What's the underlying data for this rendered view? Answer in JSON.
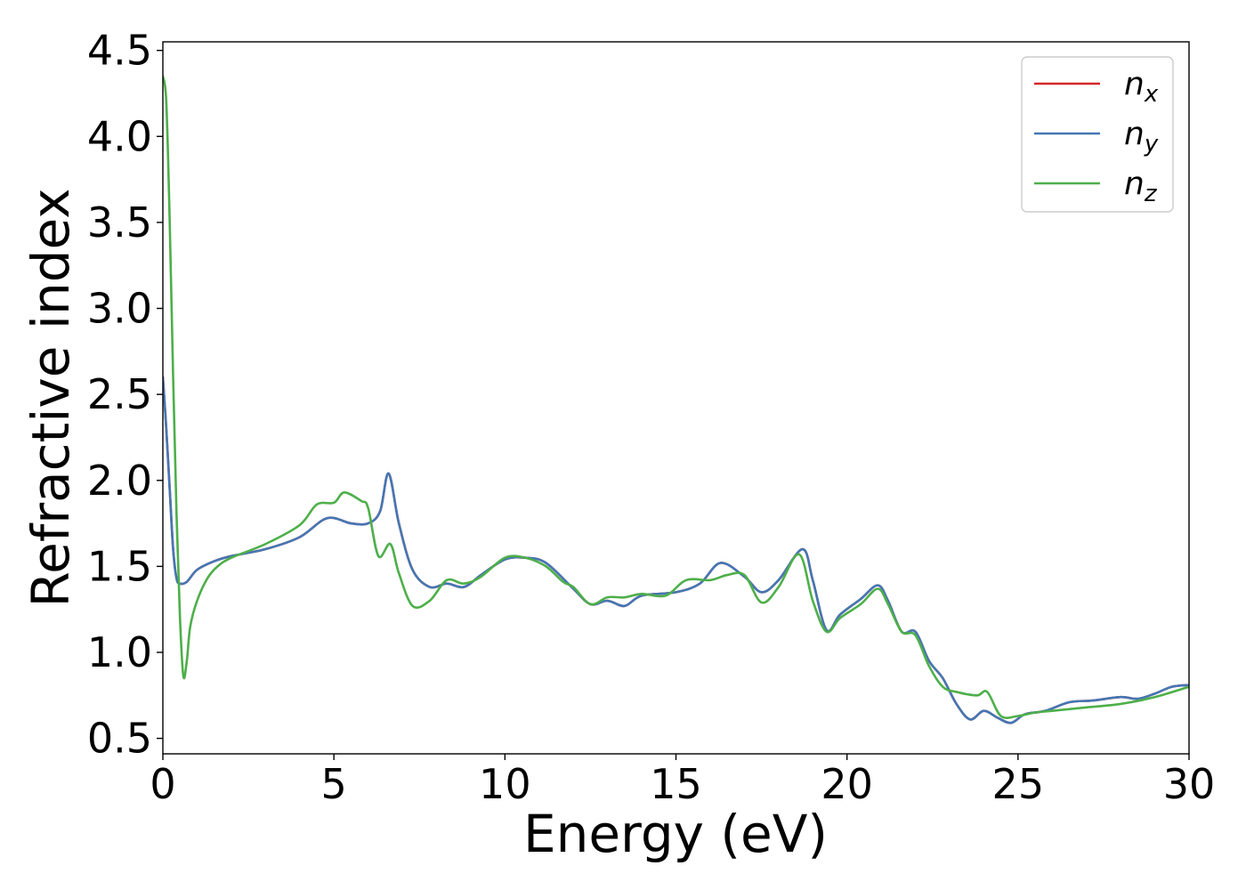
{
  "chart_data": {
    "type": "line",
    "title": "",
    "xlabel": "Energy (eV)",
    "ylabel": "Refractive index",
    "xlim": [
      0,
      30
    ],
    "ylim": [
      0.41,
      4.55
    ],
    "xticks": [
      0,
      5,
      10,
      15,
      20,
      25,
      30
    ],
    "xtick_labels": [
      "0",
      "5",
      "10",
      "15",
      "20",
      "25",
      "30"
    ],
    "yticks": [
      0.5,
      1.0,
      1.5,
      2.0,
      2.5,
      3.0,
      3.5,
      4.0,
      4.5
    ],
    "ytick_labels": [
      "0.5",
      "1.0",
      "1.5",
      "2.0",
      "2.5",
      "3.0",
      "3.5",
      "4.0",
      "4.5"
    ],
    "grid": false,
    "legend_position": "top-right",
    "series": [
      {
        "name": "n",
        "subscript": "x",
        "color": "#d62728",
        "x": [
          0,
          0.1,
          0.2,
          0.3,
          0.4,
          0.5,
          0.7,
          1,
          1.5,
          2,
          3,
          4,
          4.8,
          5.5,
          6,
          6.35,
          6.6,
          6.9,
          7.3,
          7.8,
          8.3,
          8.8,
          9.3,
          10,
          10.6,
          11.2,
          12,
          12.5,
          13,
          13.5,
          14,
          15,
          15.7,
          16.3,
          17,
          17.5,
          18,
          18.7,
          19,
          19.4,
          19.8,
          20.4,
          20.9,
          21.2,
          21.6,
          22,
          22.4,
          22.8,
          23.2,
          23.6,
          24,
          24.4,
          24.8,
          25.2,
          25.8,
          26.5,
          27.2,
          28,
          28.5,
          29,
          29.5,
          30
        ],
        "y": [
          2.6,
          2.3,
          1.95,
          1.6,
          1.43,
          1.4,
          1.41,
          1.48,
          1.53,
          1.56,
          1.6,
          1.67,
          1.78,
          1.75,
          1.75,
          1.82,
          2.04,
          1.75,
          1.48,
          1.38,
          1.4,
          1.38,
          1.45,
          1.54,
          1.55,
          1.52,
          1.37,
          1.28,
          1.3,
          1.27,
          1.33,
          1.35,
          1.4,
          1.52,
          1.44,
          1.35,
          1.42,
          1.6,
          1.42,
          1.13,
          1.22,
          1.31,
          1.39,
          1.3,
          1.12,
          1.12,
          0.95,
          0.85,
          0.7,
          0.61,
          0.66,
          0.62,
          0.59,
          0.64,
          0.66,
          0.71,
          0.72,
          0.74,
          0.73,
          0.76,
          0.8,
          0.81
        ]
      },
      {
        "name": "n",
        "subscript": "y",
        "color": "#4477b4",
        "x": [
          0,
          0.1,
          0.2,
          0.3,
          0.4,
          0.5,
          0.7,
          1,
          1.5,
          2,
          3,
          4,
          4.8,
          5.5,
          6,
          6.35,
          6.6,
          6.9,
          7.3,
          7.8,
          8.3,
          8.8,
          9.3,
          10,
          10.6,
          11.2,
          12,
          12.5,
          13,
          13.5,
          14,
          15,
          15.7,
          16.3,
          17,
          17.5,
          18,
          18.7,
          19,
          19.4,
          19.8,
          20.4,
          20.9,
          21.2,
          21.6,
          22,
          22.4,
          22.8,
          23.2,
          23.6,
          24,
          24.4,
          24.8,
          25.2,
          25.8,
          26.5,
          27.2,
          28,
          28.5,
          29,
          29.5,
          30
        ],
        "y": [
          2.6,
          2.3,
          1.95,
          1.6,
          1.43,
          1.4,
          1.41,
          1.48,
          1.53,
          1.56,
          1.6,
          1.67,
          1.78,
          1.75,
          1.75,
          1.82,
          2.04,
          1.75,
          1.48,
          1.38,
          1.4,
          1.38,
          1.45,
          1.54,
          1.55,
          1.52,
          1.37,
          1.28,
          1.3,
          1.27,
          1.33,
          1.35,
          1.4,
          1.52,
          1.44,
          1.35,
          1.42,
          1.6,
          1.42,
          1.13,
          1.22,
          1.31,
          1.39,
          1.3,
          1.12,
          1.12,
          0.95,
          0.85,
          0.7,
          0.61,
          0.66,
          0.62,
          0.59,
          0.64,
          0.66,
          0.71,
          0.72,
          0.74,
          0.73,
          0.76,
          0.8,
          0.81
        ]
      },
      {
        "name": "n",
        "subscript": "z",
        "color": "#4daf4a",
        "x": [
          0,
          0.1,
          0.2,
          0.3,
          0.4,
          0.5,
          0.6,
          0.7,
          0.8,
          1,
          1.3,
          1.6,
          2,
          3,
          4,
          4.5,
          5,
          5.3,
          5.8,
          6,
          6.3,
          6.65,
          6.9,
          7.3,
          7.8,
          8.3,
          8.8,
          9.3,
          10,
          10.6,
          11.2,
          11.7,
          12,
          12.5,
          13,
          13.5,
          14,
          14.7,
          15.3,
          16,
          16.5,
          17,
          17.5,
          18,
          18.6,
          19,
          19.4,
          19.8,
          20.4,
          20.9,
          21.2,
          21.6,
          22,
          22.4,
          22.8,
          23.2,
          23.8,
          24.1,
          24.5,
          25,
          25.5,
          26,
          27,
          28,
          29,
          30
        ],
        "y": [
          4.35,
          4.2,
          3.5,
          2.6,
          1.8,
          1.2,
          0.86,
          0.95,
          1.15,
          1.3,
          1.43,
          1.5,
          1.55,
          1.63,
          1.74,
          1.86,
          1.87,
          1.93,
          1.88,
          1.84,
          1.56,
          1.63,
          1.46,
          1.27,
          1.3,
          1.42,
          1.4,
          1.44,
          1.55,
          1.55,
          1.5,
          1.41,
          1.38,
          1.28,
          1.32,
          1.32,
          1.34,
          1.33,
          1.42,
          1.42,
          1.45,
          1.45,
          1.29,
          1.38,
          1.57,
          1.3,
          1.12,
          1.2,
          1.28,
          1.37,
          1.28,
          1.12,
          1.1,
          0.92,
          0.8,
          0.77,
          0.75,
          0.77,
          0.63,
          0.63,
          0.65,
          0.66,
          0.68,
          0.7,
          0.74,
          0.8
        ]
      }
    ]
  }
}
